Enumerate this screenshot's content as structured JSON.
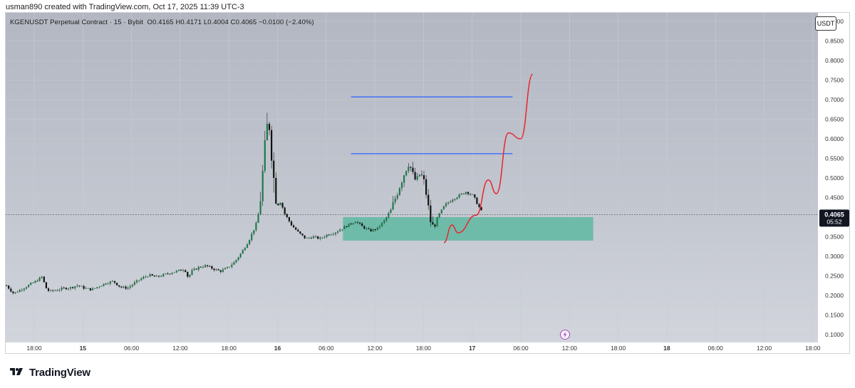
{
  "header": {
    "created_by": "usman890 created with TradingView.com, Oct 17, 2025 11:39 UTC-3"
  },
  "symbol_info": {
    "name": "KGENUSDT Perpetual Contract · 15 · Bybit",
    "open": "O0.4165",
    "high": "H0.4171",
    "low": "L0.4004",
    "close": "C0.4065",
    "change": "−0.0100 (−2.40%)"
  },
  "currency_button": "USDT",
  "price_badge": {
    "price": "0.4065",
    "countdown": "05:52"
  },
  "brand": {
    "name": "TradingView",
    "logo_icon": "tradingview-logo-icon"
  },
  "colors": {
    "bull_candle": "#1f7a4a",
    "bear_candle": "#111111",
    "zone": "#5fb8a2",
    "level_line": "#2962ff",
    "projection": "#e8252f",
    "price_badge": "#131722"
  },
  "chart_data": {
    "type": "candlestick",
    "title": "",
    "yaxis": {
      "min": 0.1,
      "max": 0.9,
      "position": "right",
      "ticks": [
        "0.9000",
        "0.8500",
        "0.8000",
        "0.7500",
        "0.7000",
        "0.6500",
        "0.6000",
        "0.5500",
        "0.5000",
        "0.4500",
        "0.4000",
        "0.3500",
        "0.3000",
        "0.2500",
        "0.2000",
        "0.1500",
        "0.1000"
      ]
    },
    "xaxis": {
      "labels": [
        "18:00",
        "15",
        "06:00",
        "12:00",
        "18:00",
        "16",
        "06:00",
        "12:00",
        "18:00",
        "17",
        "06:00",
        "12:00",
        "18:00",
        "18",
        "06:00",
        "12:00",
        "18:00"
      ],
      "bold_labels": [
        "15",
        "16",
        "17",
        "18"
      ]
    },
    "grid": true,
    "last_price": 0.4065,
    "horizontal_levels": [
      {
        "price": 0.707,
        "from": "16 09:00",
        "to": "17 05:00"
      },
      {
        "price": 0.562,
        "from": "16 09:00",
        "to": "17 05:00"
      }
    ],
    "zone": {
      "top": 0.4,
      "bottom": 0.34,
      "from": "16 08:00",
      "to": "17 15:00"
    },
    "projection_path": [
      [
        0.335,
        "17 -03:30"
      ],
      [
        0.38,
        "17 -02:30"
      ],
      [
        0.36,
        "17 -01:45"
      ],
      [
        0.405,
        "17 00:30"
      ],
      [
        0.495,
        "17 02:00"
      ],
      [
        0.46,
        "17 03:00"
      ],
      [
        0.615,
        "17 04:30"
      ],
      [
        0.6,
        "17 06:00"
      ],
      [
        0.765,
        "17 07:30"
      ]
    ],
    "price_points": [
      [
        0.225,
        0
      ],
      [
        0.205,
        10
      ],
      [
        0.215,
        20
      ],
      [
        0.225,
        30
      ],
      [
        0.235,
        40
      ],
      [
        0.248,
        50
      ],
      [
        0.22,
        55
      ],
      [
        0.21,
        60
      ],
      [
        0.214,
        70
      ],
      [
        0.218,
        80
      ],
      [
        0.22,
        90
      ],
      [
        0.226,
        100
      ],
      [
        0.218,
        110
      ],
      [
        0.215,
        120
      ],
      [
        0.224,
        130
      ],
      [
        0.232,
        140
      ],
      [
        0.236,
        150
      ],
      [
        0.221,
        160
      ],
      [
        0.219,
        170
      ],
      [
        0.232,
        180
      ],
      [
        0.244,
        190
      ],
      [
        0.252,
        200
      ],
      [
        0.247,
        210
      ],
      [
        0.252,
        220
      ],
      [
        0.258,
        230
      ],
      [
        0.262,
        240
      ],
      [
        0.268,
        250
      ],
      [
        0.245,
        255
      ],
      [
        0.262,
        260
      ],
      [
        0.272,
        270
      ],
      [
        0.276,
        280
      ],
      [
        0.268,
        290
      ],
      [
        0.262,
        300
      ],
      [
        0.27,
        310
      ],
      [
        0.285,
        320
      ],
      [
        0.31,
        330
      ],
      [
        0.34,
        340
      ],
      [
        0.38,
        350
      ],
      [
        0.42,
        355
      ],
      [
        0.52,
        360
      ],
      [
        0.62,
        365
      ],
      [
        0.655,
        368
      ],
      [
        0.5,
        375
      ],
      [
        0.43,
        380
      ],
      [
        0.44,
        385
      ],
      [
        0.41,
        390
      ],
      [
        0.38,
        400
      ],
      [
        0.36,
        410
      ],
      [
        0.345,
        420
      ],
      [
        0.35,
        430
      ],
      [
        0.345,
        440
      ],
      [
        0.355,
        450
      ],
      [
        0.36,
        460
      ],
      [
        0.37,
        470
      ],
      [
        0.38,
        480
      ],
      [
        0.39,
        490
      ],
      [
        0.375,
        500
      ],
      [
        0.37,
        505
      ],
      [
        0.365,
        510
      ],
      [
        0.37,
        520
      ],
      [
        0.39,
        530
      ],
      [
        0.42,
        540
      ],
      [
        0.47,
        550
      ],
      [
        0.52,
        560
      ],
      [
        0.54,
        565
      ],
      [
        0.51,
        570
      ],
      [
        0.49,
        575
      ],
      [
        0.51,
        580
      ],
      [
        0.5,
        585
      ],
      [
        0.45,
        590
      ],
      [
        0.39,
        595
      ],
      [
        0.37,
        600
      ],
      [
        0.4,
        605
      ],
      [
        0.43,
        615
      ],
      [
        0.445,
        625
      ],
      [
        0.455,
        635
      ],
      [
        0.465,
        645
      ],
      [
        0.455,
        655
      ],
      [
        0.43,
        662
      ],
      [
        0.41,
        668
      ]
    ]
  }
}
